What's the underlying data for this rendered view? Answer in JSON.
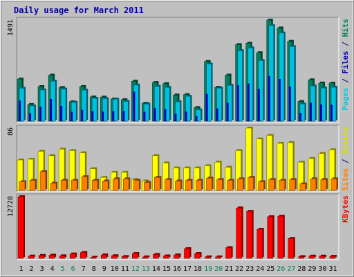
{
  "chart_data": {
    "type": "bar",
    "title": "Daily usage for March 2011",
    "categories": [
      "1",
      "2",
      "3",
      "4",
      "5",
      "6",
      "7",
      "8",
      "9",
      "10",
      "11",
      "12",
      "13",
      "14",
      "15",
      "16",
      "17",
      "18",
      "19",
      "20",
      "21",
      "22",
      "23",
      "24",
      "25",
      "26",
      "27",
      "28",
      "29",
      "30",
      "31"
    ],
    "weekend_days": [
      "5",
      "6",
      "12",
      "13",
      "19",
      "20",
      "26",
      "27"
    ],
    "panels": [
      {
        "id": "hits_files_pages",
        "ymax_label": "1491",
        "ymax": 1491,
        "legend": [
          {
            "text": "Pages",
            "color": "#00c8e0"
          },
          {
            "text": " / ",
            "color": "#000080"
          },
          {
            "text": "Files",
            "color": "#0000c0"
          },
          {
            "text": " / ",
            "color": "#000080"
          },
          {
            "text": "Hits",
            "color": "#008060"
          }
        ],
        "series": [
          {
            "name": "Hits",
            "color": "#008060",
            "values": [
              621,
              246,
              511,
              679,
              497,
              287,
              511,
              358,
              356,
              328,
              318,
              590,
              264,
              571,
              554,
              387,
              393,
              201,
              880,
              500,
              680,
              1130,
              1150,
              1010,
              1491,
              1375,
              1178,
              291,
              610,
              563,
              562
            ]
          },
          {
            "name": "Files",
            "color": "#00c0e0",
            "values": [
              486,
              225,
              461,
              590,
              473,
              278,
              458,
              337,
              332,
              325,
              292,
              532,
              254,
              514,
              498,
              286,
              366,
              167,
              844,
              488,
              529,
              1040,
              1080,
              895,
              1410,
              1300,
              1100,
              254,
              520,
              489,
              500
            ]
          },
          {
            "name": "Pages",
            "color": "#0000c0",
            "values": [
              306,
              118,
              214,
              327,
              225,
              140,
              167,
              147,
              143,
              151,
              151,
              436,
              140,
              192,
              178,
              112,
              143,
              74,
              403,
              188,
              271,
              530,
              555,
              476,
              667,
              623,
              512,
              123,
              274,
              248,
              243
            ]
          }
        ]
      },
      {
        "id": "visits_sites",
        "ymax_label": "86",
        "ymax": 86,
        "legend": [
          {
            "text": "Sites",
            "color": "#ff8000"
          },
          {
            "text": " / ",
            "color": "#000080"
          },
          {
            "text": "Visits",
            "color": "#e0e000"
          }
        ],
        "series": [
          {
            "name": "Visits",
            "color": "#ffff00",
            "values": [
              42,
              43,
              54,
              48,
              57,
              55,
              52,
              30,
              18,
              25,
              25,
              15,
              13,
              48,
              38,
              31,
              31,
              31,
              34,
              39,
              32,
              55,
              86,
              71,
              76,
              65,
              66,
              39,
              44,
              51,
              56
            ]
          },
          {
            "name": "Sites",
            "color": "#ff8000",
            "values": [
              12,
              14,
              26,
              10,
              14,
              14,
              19,
              14,
              13,
              16,
              16,
              14,
              11,
              18,
              15,
              13,
              14,
              14,
              17,
              15,
              14,
              16,
              18,
              12,
              15,
              14,
              15,
              9,
              16,
              15,
              16
            ]
          }
        ]
      },
      {
        "id": "kbytes",
        "ymax_label": "12728",
        "ymax": 12728,
        "legend": [
          {
            "text": "KBytes",
            "color": "#ff0000"
          }
        ],
        "series": [
          {
            "name": "KBytes",
            "color": "#ff0000",
            "values": [
              12728,
              470,
              600,
              650,
              520,
              900,
              1200,
              220,
              700,
              540,
              380,
              1000,
              300,
              800,
              500,
              700,
              2000,
              1000,
              300,
              300,
              2200,
              10400,
              9700,
              6000,
              8600,
              8700,
              4100,
              350,
              460,
              460,
              420
            ]
          }
        ]
      }
    ]
  }
}
